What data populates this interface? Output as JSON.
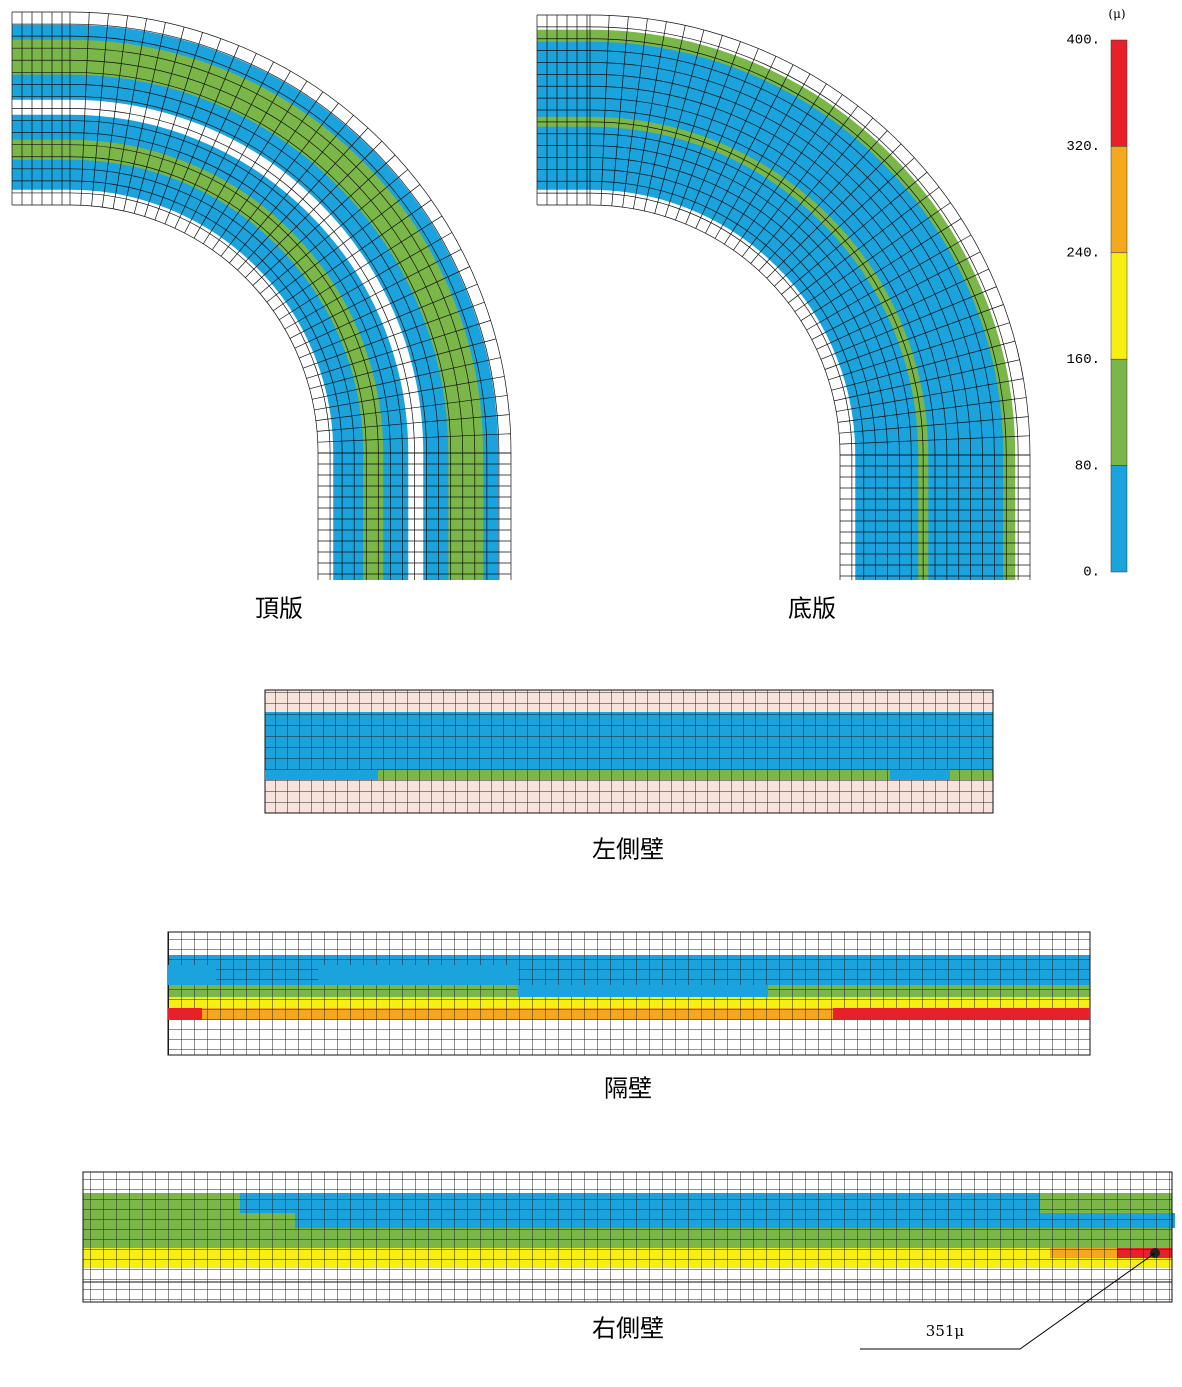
{
  "panels": [
    {
      "label": "頂版"
    },
    {
      "label": "底版"
    },
    {
      "label": "左側壁"
    },
    {
      "label": "隔壁"
    },
    {
      "label": "右側壁"
    }
  ],
  "legend": {
    "unit": "(μ)",
    "ticks": [
      "400.",
      "320.",
      "240.",
      "160.",
      "80.",
      "0."
    ],
    "colors": [
      "#e8202a",
      "#f5a81c",
      "#f7ee14",
      "#7ab648",
      "#1aa3dd"
    ]
  },
  "annotation": {
    "label": "351μ"
  }
}
